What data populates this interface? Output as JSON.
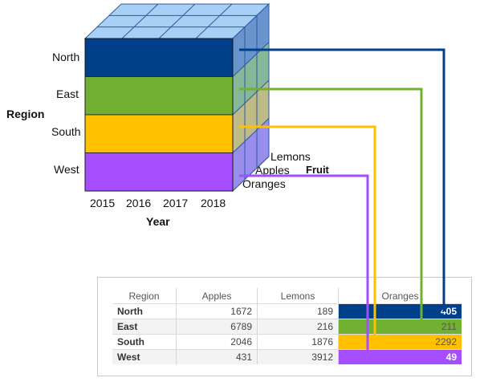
{
  "cube": {
    "region_axis_title": "Region",
    "year_axis_title": "Year",
    "fruit_axis_title": "Fruit",
    "regions": [
      {
        "name": "North",
        "color": "#003f8a",
        "side": "#1d4f9a"
      },
      {
        "name": "East",
        "color": "#72b032",
        "side": "#5e9a26"
      },
      {
        "name": "South",
        "color": "#ffc000",
        "side": "#d9a300"
      },
      {
        "name": "West",
        "color": "#a54eff",
        "side": "#8a3ee0"
      }
    ],
    "years": [
      "2015",
      "2016",
      "2017",
      "2018"
    ],
    "fruits": [
      "Lemons",
      "Apples",
      "Oranges"
    ],
    "top_color": "#a8d0f5",
    "grid_line_color": "#2c5aa0"
  },
  "table": {
    "headers": [
      "Region",
      "Apples",
      "Lemons",
      "Oranges"
    ],
    "rows": [
      {
        "region": "North",
        "apples": "1672",
        "lemons": "189",
        "oranges": "405"
      },
      {
        "region": "East",
        "apples": "6789",
        "lemons": "216",
        "oranges": "211"
      },
      {
        "region": "South",
        "apples": "2046",
        "lemons": "1876",
        "oranges": "2292"
      },
      {
        "region": "West",
        "apples": "431",
        "lemons": "3912",
        "oranges": "49"
      }
    ]
  }
}
